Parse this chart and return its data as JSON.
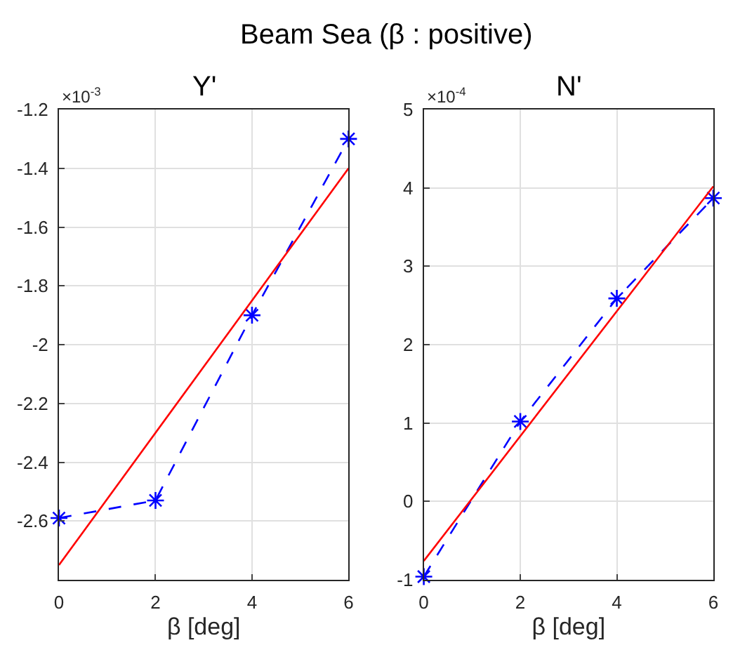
{
  "chart_data": [
    {
      "type": "line",
      "title": "Y'",
      "xlabel": "β [deg]",
      "annotations": [
        "Beam Sea (β : positive)",
        "×10$^{-3}$"
      ],
      "xlim": [
        0,
        6
      ],
      "xticks": [
        0,
        2,
        4,
        6
      ],
      "ylim": [
        -2.8,
        -1.2
      ],
      "yticks": [
        -2.6,
        -2.4,
        -2.2,
        -2,
        -1.8,
        -1.6,
        -1.4,
        -1.2
      ],
      "grid": true,
      "series": [
        {
          "color": "#0000ff",
          "x": [
            0,
            2,
            4,
            6
          ],
          "values": [
            -2.59,
            -2.53,
            -1.9,
            -1.3
          ],
          "line_style": "dashed",
          "marker": "cross"
        },
        {
          "color": "#ff0000",
          "x": [
            0,
            6
          ],
          "values": [
            -2.75,
            -1.4
          ],
          "line_style": "solid"
        }
      ]
    },
    {
      "type": "line",
      "title": "N'",
      "xlabel": "β [deg]",
      "annotations": [
        "×10$^{-4}$"
      ],
      "xlim": [
        0,
        6
      ],
      "xticks": [
        0,
        2,
        4,
        6
      ],
      "ylim": [
        -1,
        5
      ],
      "yticks": [
        -1,
        0,
        1,
        2,
        3,
        4,
        5
      ],
      "grid": true,
      "series": [
        {
          "color": "#0000ff",
          "x": [
            0,
            2,
            4,
            6
          ],
          "values": [
            -0.96,
            1.02,
            2.59,
            3.87
          ],
          "line_style": "dashed",
          "marker": "cross"
        },
        {
          "color": "#ff0000",
          "x": [
            0,
            6
          ],
          "values": [
            -0.76,
            4.02
          ],
          "line_style": "solid"
        }
      ]
    }
  ]
}
